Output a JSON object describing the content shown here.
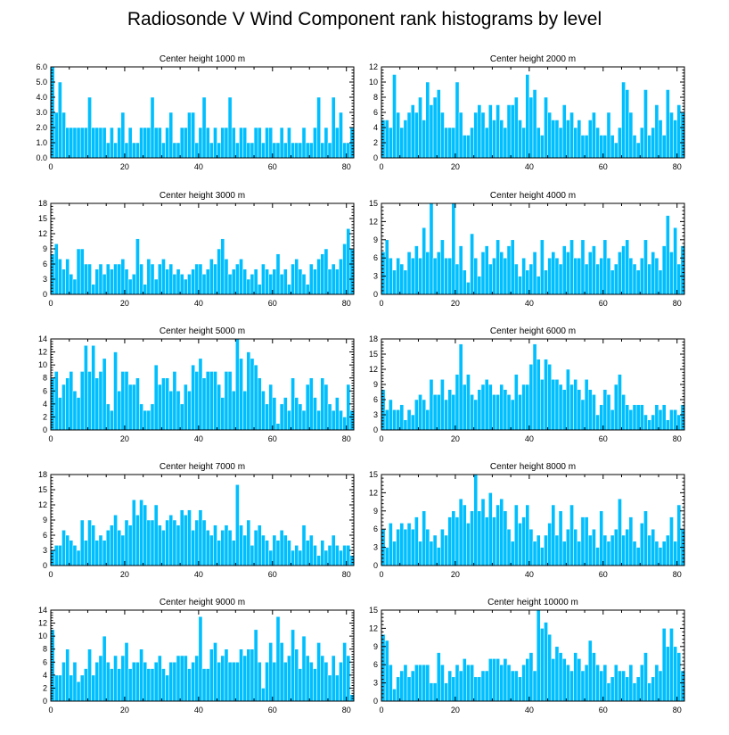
{
  "page": {
    "title": "Radiosonde V Wind Component rank histograms by level"
  },
  "chart_data": [
    {
      "type": "bar",
      "title": "Center height 1000 m",
      "xticks": [
        0,
        20,
        40,
        60,
        80
      ],
      "yticks": [
        0.0,
        1.0,
        2.0,
        3.0,
        4.0,
        5.0,
        6.0
      ],
      "ytick_labels": [
        "0.0",
        "1.0",
        "2.0",
        "3.0",
        "4.0",
        "5.0",
        "6.0"
      ],
      "ylim": [
        0,
        6
      ],
      "xlim": [
        0,
        82
      ],
      "values": [
        6,
        3,
        5,
        3,
        2,
        2,
        2,
        2,
        2,
        2,
        4,
        2,
        2,
        2,
        2,
        1,
        2,
        1,
        2,
        3,
        1,
        2,
        1,
        1,
        2,
        2,
        2,
        4,
        2,
        2,
        1,
        2,
        3,
        1,
        1,
        2,
        2,
        3,
        3,
        1,
        2,
        4,
        2,
        1,
        2,
        1,
        2,
        2,
        4,
        2,
        1,
        2,
        2,
        1,
        1,
        2,
        2,
        1,
        2,
        2,
        1,
        1,
        2,
        1,
        2,
        1,
        1,
        1,
        2,
        1,
        1,
        2,
        4,
        1,
        2,
        1,
        4,
        2,
        3,
        1,
        1,
        2
      ]
    },
    {
      "type": "bar",
      "title": "Center height 2000 m",
      "xticks": [
        0,
        20,
        40,
        60,
        80
      ],
      "yticks": [
        0,
        2,
        4,
        6,
        8,
        10,
        12
      ],
      "ytick_labels": [
        "0",
        "2",
        "4",
        "6",
        "8",
        "10",
        "12"
      ],
      "ylim": [
        0,
        12
      ],
      "xlim": [
        0,
        82
      ],
      "values": [
        5,
        5,
        4,
        11,
        6,
        4,
        5,
        6,
        7,
        6,
        8,
        5,
        10,
        7,
        8,
        9,
        6,
        4,
        4,
        4,
        10,
        6,
        3,
        3,
        4,
        6,
        7,
        6,
        4,
        7,
        5,
        7,
        5,
        4,
        7,
        7,
        8,
        5,
        4,
        11,
        8,
        9,
        4,
        3,
        8,
        6,
        5,
        5,
        4,
        7,
        5,
        6,
        4,
        5,
        3,
        3,
        5,
        6,
        4,
        3,
        3,
        6,
        3,
        2,
        4,
        10,
        9,
        6,
        3,
        2,
        4,
        9,
        3,
        4,
        7,
        5,
        3,
        9,
        6,
        5,
        7,
        6
      ]
    },
    {
      "type": "bar",
      "title": "Center height 3000 m",
      "xticks": [
        0,
        20,
        40,
        60,
        80
      ],
      "yticks": [
        0,
        3,
        6,
        9,
        12,
        15,
        18
      ],
      "ytick_labels": [
        "0",
        "3",
        "6",
        "9",
        "12",
        "15",
        "18"
      ],
      "ylim": [
        0,
        18
      ],
      "xlim": [
        0,
        82
      ],
      "values": [
        8,
        10,
        7,
        5,
        7,
        4,
        3,
        9,
        9,
        6,
        6,
        2,
        5,
        6,
        4,
        6,
        5,
        6,
        6,
        7,
        5,
        3,
        4,
        11,
        6,
        2,
        7,
        6,
        3,
        6,
        7,
        5,
        6,
        4,
        5,
        4,
        3,
        4,
        5,
        6,
        6,
        4,
        5,
        7,
        6,
        9,
        11,
        7,
        4,
        5,
        6,
        7,
        5,
        3,
        4,
        5,
        2,
        6,
        5,
        4,
        5,
        8,
        4,
        5,
        2,
        6,
        7,
        5,
        4,
        2,
        6,
        5,
        7,
        8,
        9,
        5,
        6,
        5,
        7,
        10,
        13,
        9
      ]
    },
    {
      "type": "bar",
      "title": "Center height 4000 m",
      "xticks": [
        0,
        20,
        40,
        60,
        80
      ],
      "yticks": [
        0,
        3,
        6,
        9,
        12,
        15
      ],
      "ytick_labels": [
        "0",
        "3",
        "6",
        "9",
        "12",
        "15"
      ],
      "ylim": [
        0,
        15
      ],
      "xlim": [
        0,
        82
      ],
      "values": [
        7,
        9,
        6,
        4,
        6,
        5,
        4,
        7,
        6,
        8,
        6,
        11,
        7,
        15,
        6,
        7,
        9,
        6,
        6,
        15,
        5,
        8,
        4,
        2,
        10,
        6,
        3,
        7,
        8,
        5,
        6,
        9,
        7,
        6,
        8,
        9,
        5,
        3,
        6,
        4,
        5,
        7,
        3,
        9,
        4,
        6,
        7,
        6,
        5,
        8,
        7,
        9,
        6,
        6,
        9,
        5,
        7,
        8,
        5,
        6,
        9,
        6,
        4,
        5,
        7,
        8,
        9,
        6,
        5,
        4,
        6,
        9,
        5,
        7,
        6,
        4,
        8,
        13,
        7,
        11,
        5,
        8
      ]
    },
    {
      "type": "bar",
      "title": "Center height 5000 m",
      "xticks": [
        0,
        20,
        40,
        60,
        80
      ],
      "yticks": [
        0,
        2,
        4,
        6,
        8,
        10,
        12,
        14
      ],
      "ytick_labels": [
        "0",
        "2",
        "4",
        "6",
        "8",
        "10",
        "12",
        "14"
      ],
      "ylim": [
        0,
        14
      ],
      "xlim": [
        0,
        82
      ],
      "values": [
        8,
        9,
        5,
        7,
        8,
        9,
        6,
        5,
        9,
        13,
        9,
        13,
        8,
        9,
        11,
        4,
        3,
        12,
        6,
        9,
        9,
        7,
        7,
        8,
        4,
        3,
        3,
        4,
        10,
        7,
        8,
        8,
        6,
        9,
        6,
        4,
        7,
        6,
        10,
        9,
        11,
        8,
        9,
        9,
        9,
        7,
        5,
        9,
        9,
        6,
        14,
        11,
        6,
        12,
        11,
        10,
        8,
        6,
        4,
        7,
        5,
        1,
        4,
        5,
        3,
        8,
        5,
        4,
        3,
        7,
        8,
        5,
        3,
        8,
        7,
        4,
        3,
        5,
        3,
        2,
        7,
        3
      ]
    },
    {
      "type": "bar",
      "title": "Center height 6000 m",
      "xticks": [
        0,
        20,
        40,
        60,
        80
      ],
      "yticks": [
        0,
        3,
        6,
        9,
        12,
        15,
        18
      ],
      "ytick_labels": [
        "0",
        "3",
        "6",
        "9",
        "12",
        "15",
        "18"
      ],
      "ylim": [
        0,
        18
      ],
      "xlim": [
        0,
        82
      ],
      "values": [
        8,
        4,
        6,
        4,
        4,
        5,
        2,
        4,
        3,
        6,
        7,
        6,
        4,
        10,
        7,
        7,
        10,
        6,
        8,
        7,
        11,
        17,
        9,
        11,
        7,
        6,
        8,
        9,
        10,
        9,
        7,
        7,
        9,
        8,
        7,
        6,
        11,
        7,
        9,
        9,
        13,
        17,
        14,
        10,
        14,
        13,
        10,
        10,
        9,
        8,
        12,
        9,
        10,
        8,
        6,
        10,
        8,
        7,
        3,
        5,
        8,
        7,
        4,
        9,
        11,
        7,
        5,
        4,
        5,
        5,
        5,
        3,
        2,
        3,
        5,
        4,
        5,
        2,
        4,
        4,
        3,
        5
      ]
    },
    {
      "type": "bar",
      "title": "Center height 7000 m",
      "xticks": [
        0,
        20,
        40,
        60,
        80
      ],
      "yticks": [
        0,
        3,
        6,
        9,
        12,
        15,
        18
      ],
      "ytick_labels": [
        "0",
        "3",
        "6",
        "9",
        "12",
        "15",
        "18"
      ],
      "ylim": [
        0,
        18
      ],
      "xlim": [
        0,
        82
      ],
      "values": [
        3,
        4,
        4,
        7,
        6,
        5,
        4,
        3,
        9,
        5,
        9,
        8,
        5,
        6,
        5,
        7,
        8,
        10,
        7,
        6,
        9,
        8,
        13,
        10,
        13,
        12,
        9,
        9,
        12,
        8,
        7,
        9,
        10,
        9,
        8,
        11,
        10,
        11,
        7,
        9,
        11,
        9,
        7,
        6,
        8,
        5,
        7,
        8,
        7,
        5,
        16,
        8,
        6,
        9,
        4,
        7,
        8,
        6,
        5,
        3,
        6,
        5,
        7,
        6,
        5,
        3,
        4,
        3,
        8,
        5,
        6,
        4,
        2,
        5,
        3,
        4,
        6,
        4,
        3,
        4,
        4,
        2
      ]
    },
    {
      "type": "bar",
      "title": "Center height 8000 m",
      "xticks": [
        0,
        20,
        40,
        60,
        80
      ],
      "yticks": [
        0,
        3,
        6,
        9,
        12,
        15
      ],
      "ytick_labels": [
        "0",
        "3",
        "6",
        "9",
        "12",
        "15"
      ],
      "ylim": [
        0,
        15
      ],
      "xlim": [
        0,
        82
      ],
      "values": [
        6,
        3,
        7,
        4,
        6,
        7,
        6,
        7,
        6,
        8,
        4,
        9,
        6,
        4,
        5,
        3,
        6,
        5,
        8,
        9,
        8,
        11,
        10,
        7,
        9,
        15,
        9,
        11,
        8,
        12,
        8,
        10,
        11,
        9,
        6,
        4,
        10,
        7,
        8,
        10,
        6,
        4,
        5,
        3,
        5,
        7,
        10,
        5,
        9,
        4,
        6,
        10,
        6,
        4,
        8,
        8,
        5,
        6,
        3,
        9,
        5,
        4,
        5,
        6,
        11,
        5,
        6,
        8,
        4,
        3,
        7,
        9,
        5,
        6,
        4,
        3,
        4,
        5,
        8,
        4,
        10,
        6
      ]
    },
    {
      "type": "bar",
      "title": "Center height 9000 m",
      "xticks": [
        0,
        20,
        40,
        60,
        80
      ],
      "yticks": [
        0,
        2,
        4,
        6,
        8,
        10,
        12,
        14
      ],
      "ytick_labels": [
        "0",
        "2",
        "4",
        "6",
        "8",
        "10",
        "12",
        "14"
      ],
      "ylim": [
        0,
        14
      ],
      "xlim": [
        0,
        82
      ],
      "values": [
        11,
        4,
        4,
        6,
        8,
        4,
        6,
        3,
        4,
        5,
        8,
        4,
        6,
        7,
        10,
        6,
        5,
        7,
        5,
        7,
        9,
        5,
        6,
        6,
        8,
        6,
        5,
        5,
        6,
        7,
        5,
        4,
        6,
        6,
        7,
        7,
        7,
        5,
        6,
        7,
        13,
        5,
        5,
        8,
        9,
        6,
        7,
        8,
        6,
        6,
        6,
        8,
        7,
        8,
        8,
        11,
        6,
        2,
        6,
        9,
        6,
        13,
        9,
        6,
        7,
        11,
        8,
        5,
        10,
        7,
        6,
        5,
        9,
        7,
        6,
        4,
        7,
        4,
        6,
        9,
        7,
        1
      ]
    },
    {
      "type": "bar",
      "title": "Center height 10000 m",
      "xticks": [
        0,
        20,
        40,
        60,
        80
      ],
      "yticks": [
        0,
        3,
        6,
        9,
        12,
        15
      ],
      "ytick_labels": [
        "0",
        "3",
        "6",
        "9",
        "12",
        "15"
      ],
      "ylim": [
        0,
        15
      ],
      "xlim": [
        0,
        82
      ],
      "values": [
        11,
        10,
        6,
        2,
        4,
        5,
        6,
        4,
        5,
        6,
        6,
        6,
        6,
        3,
        3,
        8,
        6,
        3,
        5,
        4,
        6,
        5,
        7,
        6,
        6,
        4,
        4,
        5,
        5,
        7,
        7,
        7,
        6,
        7,
        6,
        5,
        5,
        4,
        6,
        7,
        8,
        5,
        15,
        12,
        13,
        11,
        7,
        9,
        8,
        7,
        6,
        5,
        8,
        7,
        5,
        6,
        10,
        8,
        6,
        5,
        6,
        3,
        4,
        6,
        5,
        5,
        4,
        6,
        3,
        4,
        6,
        8,
        3,
        4,
        6,
        5,
        12,
        9,
        12,
        9,
        8,
        5
      ]
    }
  ]
}
